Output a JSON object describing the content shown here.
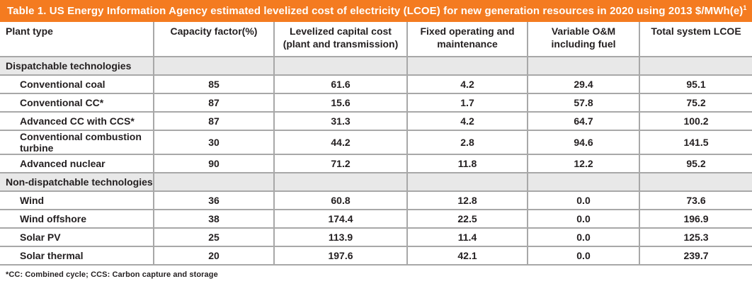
{
  "colors": {
    "accent_orange": "#f47b20",
    "section_header_bg": "#e8e8e8",
    "grid_line": "#a8a8a8",
    "title_text": "#ffffff",
    "body_text": "#231f20"
  },
  "chart_data": {
    "type": "table",
    "title": "Table 1. US Energy Information Agency estimated levelized cost of electricity (LCOE) for new generation resources in 2020 using 2013 $/MWh(e)",
    "title_superscript": "1",
    "units": "2013 $/MWh(e)",
    "columns": [
      {
        "label": "Plant type"
      },
      {
        "label": "Capacity factor(%)"
      },
      {
        "label": "Levelized capital cost",
        "label2": "(plant and transmission)"
      },
      {
        "label": "Fixed operating and",
        "label2": "maintenance"
      },
      {
        "label": "Variable O&M",
        "label2": "including fuel"
      },
      {
        "label": "Total system LCOE"
      }
    ],
    "sections": [
      {
        "label": "Dispatchable technologies",
        "rows": [
          {
            "plant": "Conventional coal",
            "capacity": "85",
            "capital": "61.6",
            "fixed": "4.2",
            "variable": "29.4",
            "total": "95.1"
          },
          {
            "plant": "Conventional CC*",
            "capacity": "87",
            "capital": "15.6",
            "fixed": "1.7",
            "variable": "57.8",
            "total": "75.2"
          },
          {
            "plant": "Advanced CC with CCS*",
            "capacity": "87",
            "capital": "31.3",
            "fixed": "4.2",
            "variable": "64.7",
            "total": "100.2"
          },
          {
            "plant": "Conventional combustion turbine",
            "capacity": "30",
            "capital": "44.2",
            "fixed": "2.8",
            "variable": "94.6",
            "total": "141.5"
          },
          {
            "plant": "Advanced nuclear",
            "capacity": "90",
            "capital": "71.2",
            "fixed": "11.8",
            "variable": "12.2",
            "total": "95.2"
          }
        ]
      },
      {
        "label": "Non-dispatchable technologies",
        "rows": [
          {
            "plant": "Wind",
            "capacity": "36",
            "capital": "60.8",
            "fixed": "12.8",
            "variable": "0.0",
            "total": "73.6"
          },
          {
            "plant": "Wind offshore",
            "capacity": "38",
            "capital": "174.4",
            "fixed": "22.5",
            "variable": "0.0",
            "total": "196.9"
          },
          {
            "plant": "Solar PV",
            "capacity": "25",
            "capital": "113.9",
            "fixed": "11.4",
            "variable": "0.0",
            "total": "125.3"
          },
          {
            "plant": "Solar thermal",
            "capacity": "20",
            "capital": "197.6",
            "fixed": "42.1",
            "variable": "0.0",
            "total": "239.7"
          }
        ]
      }
    ],
    "footnote": "*CC: Combined cycle; CCS: Carbon capture and storage"
  }
}
